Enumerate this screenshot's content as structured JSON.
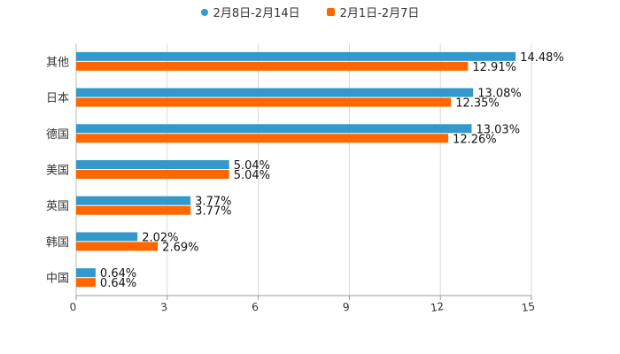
{
  "chart_data": {
    "type": "bar",
    "orientation": "horizontal",
    "categories": [
      "其他",
      "日本",
      "德国",
      "美国",
      "英国",
      "韩国",
      "中国"
    ],
    "series": [
      {
        "name": "2月8日-2月14日",
        "color": "#3399cc",
        "values": [
          14.48,
          13.08,
          13.03,
          5.04,
          3.77,
          2.02,
          0.64
        ],
        "labels": [
          "14.48%",
          "13.08%",
          "13.03%",
          "5.04%",
          "3.77%",
          "2.02%",
          "0.64%"
        ]
      },
      {
        "name": "2月1日-2月7日",
        "color": "#ff6600",
        "values": [
          12.91,
          12.35,
          12.26,
          5.04,
          3.77,
          2.69,
          0.64
        ],
        "labels": [
          "12.91%",
          "12.35%",
          "12.26%",
          "5.04%",
          "3.77%",
          "2.69%",
          "0.64%"
        ]
      }
    ],
    "x_ticks": [
      "0",
      "3",
      "6",
      "9",
      "12",
      "15"
    ],
    "xlim": [
      0,
      15
    ],
    "grid": true,
    "legend_position": "top-center",
    "title": "",
    "xlabel": "",
    "ylabel": ""
  }
}
